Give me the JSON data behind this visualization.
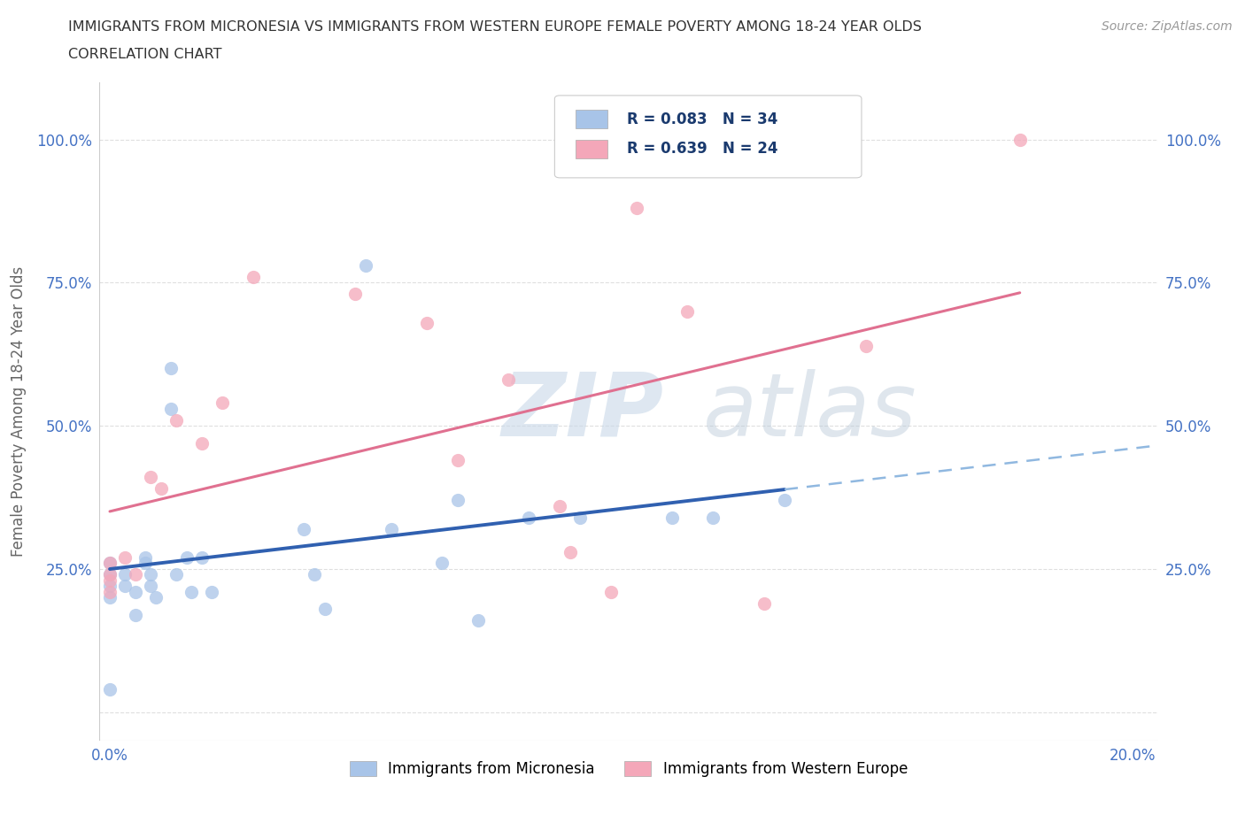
{
  "title_line1": "IMMIGRANTS FROM MICRONESIA VS IMMIGRANTS FROM WESTERN EUROPE FEMALE POVERTY AMONG 18-24 YEAR OLDS",
  "title_line2": "CORRELATION CHART",
  "source_text": "Source: ZipAtlas.com",
  "ylabel": "Female Poverty Among 18-24 Year Olds",
  "xlim": [
    -0.002,
    0.205
  ],
  "ylim": [
    -0.05,
    1.1
  ],
  "yticks": [
    0.0,
    0.25,
    0.5,
    0.75,
    1.0
  ],
  "ytick_labels_left": [
    "",
    "25.0%",
    "50.0%",
    "75.0%",
    "100.0%"
  ],
  "ytick_labels_right": [
    "",
    "25.0%",
    "50.0%",
    "75.0%",
    "100.0%"
  ],
  "xticks": [
    0.0,
    0.05,
    0.1,
    0.15,
    0.2
  ],
  "xtick_labels": [
    "0.0%",
    "",
    "",
    "",
    "20.0%"
  ],
  "watermark_zip": "ZIP",
  "watermark_atlas": "atlas",
  "R_micro": 0.083,
  "N_micro": 34,
  "R_west": 0.639,
  "N_west": 24,
  "micronesia_color": "#a8c4e8",
  "western_europe_color": "#f4a7b9",
  "micro_x": [
    0.0,
    0.0,
    0.0,
    0.0,
    0.0,
    0.003,
    0.003,
    0.005,
    0.005,
    0.007,
    0.007,
    0.008,
    0.008,
    0.009,
    0.012,
    0.012,
    0.013,
    0.015,
    0.016,
    0.018,
    0.02,
    0.038,
    0.04,
    0.042,
    0.05,
    0.055,
    0.065,
    0.068,
    0.072,
    0.082,
    0.092,
    0.11,
    0.118,
    0.132
  ],
  "micro_y": [
    0.26,
    0.24,
    0.22,
    0.2,
    0.04,
    0.24,
    0.22,
    0.21,
    0.17,
    0.27,
    0.26,
    0.24,
    0.22,
    0.2,
    0.6,
    0.53,
    0.24,
    0.27,
    0.21,
    0.27,
    0.21,
    0.32,
    0.24,
    0.18,
    0.78,
    0.32,
    0.26,
    0.37,
    0.16,
    0.34,
    0.34,
    0.34,
    0.34,
    0.37
  ],
  "west_x": [
    0.0,
    0.0,
    0.0,
    0.0,
    0.003,
    0.005,
    0.008,
    0.01,
    0.013,
    0.018,
    0.022,
    0.028,
    0.048,
    0.062,
    0.068,
    0.078,
    0.088,
    0.09,
    0.098,
    0.103,
    0.113,
    0.128,
    0.148,
    0.178
  ],
  "west_y": [
    0.26,
    0.24,
    0.23,
    0.21,
    0.27,
    0.24,
    0.41,
    0.39,
    0.51,
    0.47,
    0.54,
    0.76,
    0.73,
    0.68,
    0.44,
    0.58,
    0.36,
    0.28,
    0.21,
    0.88,
    0.7,
    0.19,
    0.64,
    1.0
  ],
  "background_color": "#ffffff",
  "grid_color": "#d8d8d8",
  "title_color": "#333333",
  "axis_label_color": "#666666",
  "tick_color": "#4472c4",
  "legend_R_color": "#1a3a6e",
  "dot_size": 120,
  "blue_line_color": "#3060b0",
  "pink_line_color": "#e07090",
  "blue_dash_color": "#90b8e0"
}
